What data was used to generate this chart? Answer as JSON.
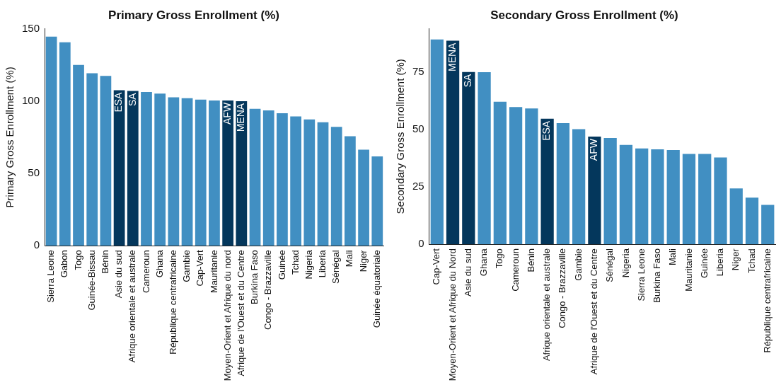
{
  "chart_data": [
    {
      "type": "bar",
      "title": "Primary Gross Enrollment (%)",
      "ylabel": "Primary Gross Enrollment (%)",
      "categories": [
        "Sierra Leone",
        "Gabon",
        "Togo",
        "Guinée-Bissau",
        "Bénin",
        "Asie du sud",
        "Afrique orientale et australe",
        "Cameroun",
        "Ghana",
        "République centrafricaine",
        "Gambie",
        "Cap-Vert",
        "Mauritanie",
        "Moyen-Orient et Afrique du nord",
        "Afrique de l'Ouest et du Centre",
        "Burkina Faso",
        "Congo - Brazzaville",
        "Guinée",
        "Tchad",
        "Nigeria",
        "Liberia",
        "Sénégal",
        "Mali",
        "Niger",
        "Guinée équatoriale"
      ],
      "values": [
        144.4,
        140.6,
        124.9,
        119.1,
        117.3,
        107.4,
        107.0,
        106.2,
        105.1,
        102.5,
        101.9,
        101.0,
        100.4,
        100.4,
        99.9,
        94.6,
        93.5,
        91.5,
        89.4,
        87.3,
        85.3,
        82.1,
        75.7,
        66.4,
        61.7
      ],
      "colors": [
        "#418fc2",
        "#418fc2",
        "#418fc2",
        "#418fc2",
        "#418fc2",
        "#04375c",
        "#04375c",
        "#418fc2",
        "#418fc2",
        "#418fc2",
        "#418fc2",
        "#418fc2",
        "#418fc2",
        "#04375c",
        "#04375c",
        "#418fc2",
        "#418fc2",
        "#418fc2",
        "#418fc2",
        "#418fc2",
        "#418fc2",
        "#418fc2",
        "#418fc2",
        "#418fc2",
        "#418fc2"
      ],
      "annotations": [
        {
          "text": "ESA",
          "x": "Asie du sud",
          "y": 107.4
        },
        {
          "text": "SA",
          "x": "Afrique orientale et australe",
          "y": 107.0
        },
        {
          "text": "AFW",
          "x": "Moyen-Orient et Afrique du nord",
          "y": 100.4
        },
        {
          "text": "MENA",
          "x": "Afrique de l'Ouest et du Centre",
          "y": 99.9
        }
      ],
      "ylim": [
        0,
        150
      ],
      "yticks": [
        0,
        50,
        100,
        150
      ],
      "grid": false,
      "legend": false
    },
    {
      "type": "bar",
      "title": "Secondary Gross Enrollment (%)",
      "ylabel": "Secondary Gross Enrollment (%)",
      "categories": [
        "Cap-Vert",
        "Moyen-Orient et Afrique du Nord",
        "Asie du sud",
        "Ghana",
        "Togo",
        "Cameroun",
        "Bénin",
        "Afrique orientale et australe",
        "Congo - Brazzaville",
        "Gambie",
        "Afrique de l'Ouest et du Centre",
        "Sénégal",
        "Nigeria",
        "Sierra Leone",
        "Burkina Faso",
        "Mali",
        "Mauritanie",
        "Guinée",
        "Liberia",
        "Niger",
        "Tchad",
        "République centrafricaine"
      ],
      "values": [
        89.3,
        88.7,
        75.1,
        75.0,
        62.1,
        59.8,
        59.2,
        54.7,
        52.8,
        50.2,
        46.9,
        46.3,
        43.3,
        41.8,
        41.4,
        41.1,
        39.4,
        39.4,
        37.8,
        24.3,
        20.3,
        17.2
      ],
      "colors": [
        "#418fc2",
        "#04375c",
        "#04375c",
        "#418fc2",
        "#418fc2",
        "#418fc2",
        "#418fc2",
        "#04375c",
        "#418fc2",
        "#418fc2",
        "#04375c",
        "#418fc2",
        "#418fc2",
        "#418fc2",
        "#418fc2",
        "#418fc2",
        "#418fc2",
        "#418fc2",
        "#418fc2",
        "#418fc2",
        "#418fc2",
        "#418fc2"
      ],
      "annotations": [
        {
          "text": "MENA",
          "x": "Moyen-Orient et Afrique du Nord",
          "y": 88.7
        },
        {
          "text": "SA",
          "x": "Asie du sud",
          "y": 75.1
        },
        {
          "text": "ESA",
          "x": "Afrique orientale et australe",
          "y": 54.7
        },
        {
          "text": "AFW",
          "x": "Afrique de l'Ouest et du Centre",
          "y": 46.9
        }
      ],
      "ylim": [
        0,
        94
      ],
      "yticks": [
        0,
        25,
        50,
        75
      ],
      "grid": false,
      "legend": false
    }
  ]
}
